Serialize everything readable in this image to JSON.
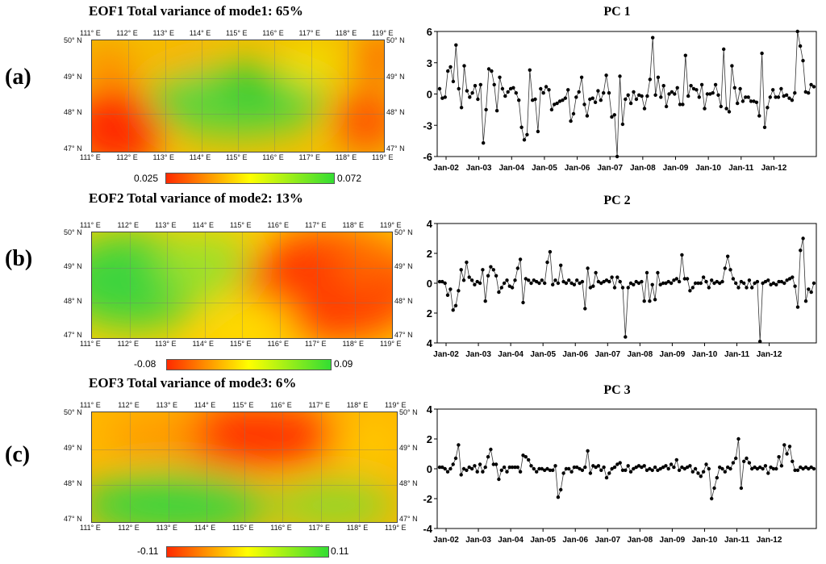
{
  "panels": [
    {
      "letter": "(a)",
      "map_title": "EOF1 Total variance of mode1: 65%",
      "pc_title": "PC 1",
      "colorbar": {
        "min_label": "0.025",
        "max_label": "0.072",
        "start_color": "#ff2a00",
        "mid_color": "#ffff00",
        "end_color": "#33dd33"
      }
    },
    {
      "letter": "(b)",
      "map_title": "EOF2 Total variance of mode2: 13%",
      "pc_title": "PC 2",
      "colorbar": {
        "min_label": "-0.08",
        "max_label": "0.09",
        "start_color": "#ff2a00",
        "mid_color": "#ffff00",
        "end_color": "#33dd33"
      }
    },
    {
      "letter": "(c)",
      "map_title": "EOF3 Total variance of mode3: 6%",
      "pc_title": "PC 3",
      "colorbar": {
        "min_label": "-0.11",
        "max_label": "0.11",
        "start_color": "#ff2a00",
        "mid_color": "#ffff00",
        "end_color": "#33dd33"
      }
    }
  ],
  "map_axes": {
    "lon_labels": [
      "111° E",
      "112° E",
      "113° E",
      "114° E",
      "115° E",
      "116° E",
      "117° E",
      "118° E",
      "119° E"
    ],
    "lat_labels": [
      "50° N",
      "49° N",
      "48° N",
      "47° N"
    ]
  },
  "chart_data": [
    {
      "type": "line",
      "title": "PC 1",
      "x_tick_labels": [
        "Jan-02",
        "Jan-03",
        "Jan-04",
        "Jan-05",
        "Jan-06",
        "Jan-07",
        "Jan-08",
        "Jan-09",
        "Jan-10",
        "Jan-11",
        "Jan-12"
      ],
      "y_tick_labels": [
        "6",
        "3",
        "0",
        "-3",
        "-6"
      ],
      "ylim": [
        -6,
        6
      ],
      "values": [
        0.5,
        -0.4,
        -0.3,
        2.2,
        2.6,
        1.2,
        4.7,
        0.5,
        -1.3,
        2.7,
        0.3,
        -0.3,
        0.1,
        0.8,
        -0.5,
        0.9,
        -4.7,
        -1.5,
        2.4,
        2.2,
        0.9,
        -1.6,
        1.6,
        0.5,
        -0.2,
        0.2,
        0.5,
        0.6,
        0.1,
        -0.6,
        -3.2,
        -4.4,
        -3.9,
        2.3,
        -0.6,
        -0.5,
        -3.6,
        0.5,
        0.1,
        0.7,
        0.4,
        -1.5,
        -1.0,
        -0.9,
        -0.7,
        -0.6,
        -0.4,
        0.4,
        -2.6,
        -1.9,
        -0.3,
        0.2,
        1.6,
        -1.0,
        -2.1,
        -0.5,
        -0.4,
        -0.8,
        0.3,
        -0.6,
        0.1,
        1.8,
        0.1,
        -2.2,
        -2.0,
        -6.0,
        1.7,
        -2.9,
        -0.5,
        -0.1,
        -0.9,
        0.2,
        -0.5,
        -0.1,
        -0.2,
        -1.4,
        -0.2,
        1.4,
        5.4,
        -0.1,
        1.6,
        -0.3,
        0.8,
        -1.2,
        0.0,
        0.2,
        0.0,
        0.6,
        -1.0,
        -1.0,
        3.7,
        -0.2,
        0.8,
        0.5,
        0.4,
        -0.3,
        0.9,
        -1.4,
        0.0,
        0.0,
        0.1,
        0.9,
        -0.1,
        -1.2,
        4.3,
        -1.4,
        -1.7,
        2.7,
        0.6,
        -0.9,
        0.5,
        -0.7,
        -0.3,
        -0.3,
        -0.7,
        -0.7,
        -0.8,
        -2.1,
        3.9,
        -3.2,
        -1.3,
        -0.3,
        0.4,
        -0.3,
        -0.3,
        0.5,
        -0.2,
        -0.1,
        -0.4,
        -0.6,
        0.1,
        6.0,
        4.6,
        3.2,
        0.2,
        0.1,
        0.9,
        0.7
      ]
    },
    {
      "type": "line",
      "title": "PC 2",
      "x_tick_labels": [
        "Jan-02",
        "Jan-03",
        "Jan-04",
        "Jan-05",
        "Jan-06",
        "Jan-07",
        "Jan-08",
        "Jan-09",
        "Jan-10",
        "Jan-11",
        "Jan-12"
      ],
      "y_tick_labels": [
        "4",
        "2",
        "0",
        "2",
        "4"
      ],
      "ylim": [
        -4,
        4
      ],
      "values": [
        0.1,
        0.1,
        0.0,
        -0.8,
        -0.4,
        -1.8,
        -1.5,
        -0.5,
        0.9,
        0.2,
        1.4,
        0.4,
        0.2,
        -0.1,
        0.1,
        0.0,
        0.9,
        -1.2,
        0.5,
        1.1,
        0.9,
        0.5,
        -0.6,
        -0.3,
        0.0,
        0.2,
        -0.2,
        -0.3,
        0.2,
        1.0,
        1.6,
        -1.3,
        0.3,
        0.2,
        0.0,
        0.2,
        0.1,
        0.0,
        0.2,
        0.0,
        1.4,
        2.1,
        -0.1,
        0.2,
        0.0,
        1.2,
        0.1,
        0.0,
        0.2,
        0.0,
        -0.1,
        0.2,
        0.0,
        0.1,
        -1.7,
        1.0,
        -0.3,
        -0.2,
        0.7,
        0.1,
        0.0,
        0.1,
        0.2,
        0.1,
        0.4,
        -0.3,
        0.4,
        0.1,
        -0.3,
        -3.6,
        -0.3,
        0.0,
        -0.1,
        0.1,
        0.0,
        0.1,
        -1.2,
        0.7,
        -1.2,
        -0.1,
        -1.1,
        0.7,
        -0.1,
        0.0,
        0.0,
        0.1,
        0.0,
        0.2,
        0.3,
        0.1,
        1.9,
        0.3,
        0.3,
        -0.5,
        -0.3,
        0.0,
        0.0,
        0.0,
        0.4,
        0.1,
        -0.3,
        0.2,
        0.0,
        0.1,
        0.0,
        0.1,
        1.0,
        1.8,
        0.9,
        0.3,
        0.0,
        -0.3,
        0.1,
        0.0,
        -0.3,
        0.2,
        -0.3,
        0.0,
        0.1,
        -3.9,
        0.0,
        0.1,
        0.2,
        -0.1,
        0.0,
        -0.1,
        0.1,
        0.1,
        0.0,
        0.2,
        0.3,
        0.4,
        -0.2,
        -1.6,
        2.2,
        3.0,
        -1.2,
        -0.4,
        -0.6,
        0.0
      ]
    },
    {
      "type": "line",
      "title": "PC 3",
      "x_tick_labels": [
        "Jan-02",
        "Jan-03",
        "Jan-04",
        "Jan-05",
        "Jan-06",
        "Jan-07",
        "Jan-08",
        "Jan-09",
        "Jan-10",
        "Jan-11",
        "Jan-12"
      ],
      "y_tick_labels": [
        "4",
        "2",
        "0",
        "-2",
        "-4"
      ],
      "ylim": [
        -4,
        4
      ],
      "values": [
        0.1,
        0.1,
        0.0,
        -0.2,
        0.0,
        0.3,
        0.7,
        1.6,
        -0.4,
        0.0,
        -0.1,
        0.1,
        0.0,
        0.2,
        -0.2,
        0.3,
        -0.2,
        0.1,
        0.8,
        1.3,
        0.3,
        0.3,
        -0.7,
        -0.1,
        0.1,
        -0.2,
        0.1,
        0.1,
        0.1,
        0.1,
        -0.2,
        0.9,
        0.8,
        0.6,
        0.2,
        0.0,
        -0.2,
        0.0,
        0.0,
        -0.1,
        0.0,
        -0.1,
        -0.1,
        0.2,
        -1.9,
        -1.4,
        -0.3,
        0.0,
        0.0,
        -0.2,
        0.1,
        0.1,
        0.0,
        -0.1,
        0.1,
        1.2,
        -0.3,
        0.2,
        0.1,
        0.2,
        -0.1,
        0.1,
        -0.6,
        -0.3,
        0.0,
        0.1,
        0.3,
        0.4,
        -0.1,
        -0.1,
        0.2,
        -0.2,
        0.0,
        0.1,
        0.2,
        0.1,
        0.2,
        -0.1,
        0.0,
        -0.1,
        0.1,
        -0.1,
        0.0,
        0.1,
        0.2,
        0.0,
        0.3,
        0.1,
        0.6,
        -0.1,
        0.1,
        0.0,
        0.1,
        0.2,
        -0.2,
        0.0,
        -0.3,
        -0.5,
        -0.2,
        0.3,
        0.0,
        -2.0,
        -1.3,
        -0.6,
        0.1,
        0.0,
        -0.2,
        0.1,
        0.0,
        0.4,
        0.7,
        2.0,
        -1.3,
        0.5,
        0.7,
        0.4,
        0.0,
        0.1,
        0.0,
        0.1,
        0.0,
        0.2,
        -0.3,
        0.1,
        0.0,
        0.0,
        0.8,
        0.2,
        1.6,
        1.0,
        1.5,
        0.5,
        -0.1,
        -0.1,
        0.1,
        0.0,
        0.1,
        0.0,
        0.1,
        0.0
      ]
    }
  ]
}
